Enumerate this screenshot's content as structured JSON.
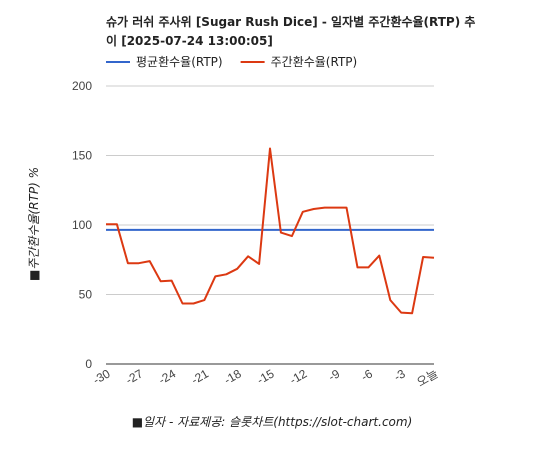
{
  "chart_data": {
    "type": "line",
    "title_line1": "슈가 러쉬 주사위 [Sugar Rush Dice] - 일자별 주간환수율(RTP) 추",
    "title_line2": "이 [2025-07-24 13:00:05]",
    "ylabel": "■주간환수율(RTP) %",
    "xlabel": "■일자 - 자료제공: 슬롯차트(https://slot-chart.com)",
    "ylim": [
      0,
      200
    ],
    "y_ticks": [
      "0",
      "50",
      "100",
      "150",
      "200"
    ],
    "x_ticks": [
      "-30",
      "-27",
      "-24",
      "-21",
      "-18",
      "-15",
      "-12",
      "-9",
      "-6",
      "-3",
      "오늘"
    ],
    "grid": true,
    "legend_position": "top-left",
    "series": [
      {
        "name": "평균환수율(RTP)",
        "color": "#3366cc",
        "values": [
          96.5,
          96.5,
          96.5,
          96.5,
          96.5,
          96.5,
          96.5,
          96.5,
          96.5,
          96.5,
          96.5,
          96.5,
          96.5,
          96.5,
          96.5,
          96.5,
          96.5,
          96.5,
          96.5,
          96.5,
          96.5,
          96.5,
          96.5,
          96.5,
          96.5,
          96.5,
          96.5,
          96.5,
          96.5,
          96.5,
          96.5
        ]
      },
      {
        "name": "주간환수율(RTP)",
        "color": "#dc3912",
        "values": [
          100.5,
          100.5,
          72.5,
          72.5,
          74,
          59.5,
          60,
          43.5,
          43.5,
          46,
          63,
          64.5,
          68.5,
          77.5,
          72,
          155,
          94.5,
          92,
          109.5,
          111.5,
          112.5,
          112.5,
          112.5,
          69.5,
          69.5,
          78,
          46,
          37,
          36.5,
          77,
          76.5
        ]
      }
    ],
    "x_values": [
      -30,
      -29,
      -28,
      -27,
      -26,
      -25,
      -24,
      -23,
      -22,
      -21,
      -20,
      -19,
      -18,
      -17,
      -16,
      -15,
      -14,
      -13,
      -12,
      -11,
      -10,
      -9,
      -8,
      -7,
      -6,
      -5,
      -4,
      -3,
      -2,
      -1,
      0
    ]
  }
}
